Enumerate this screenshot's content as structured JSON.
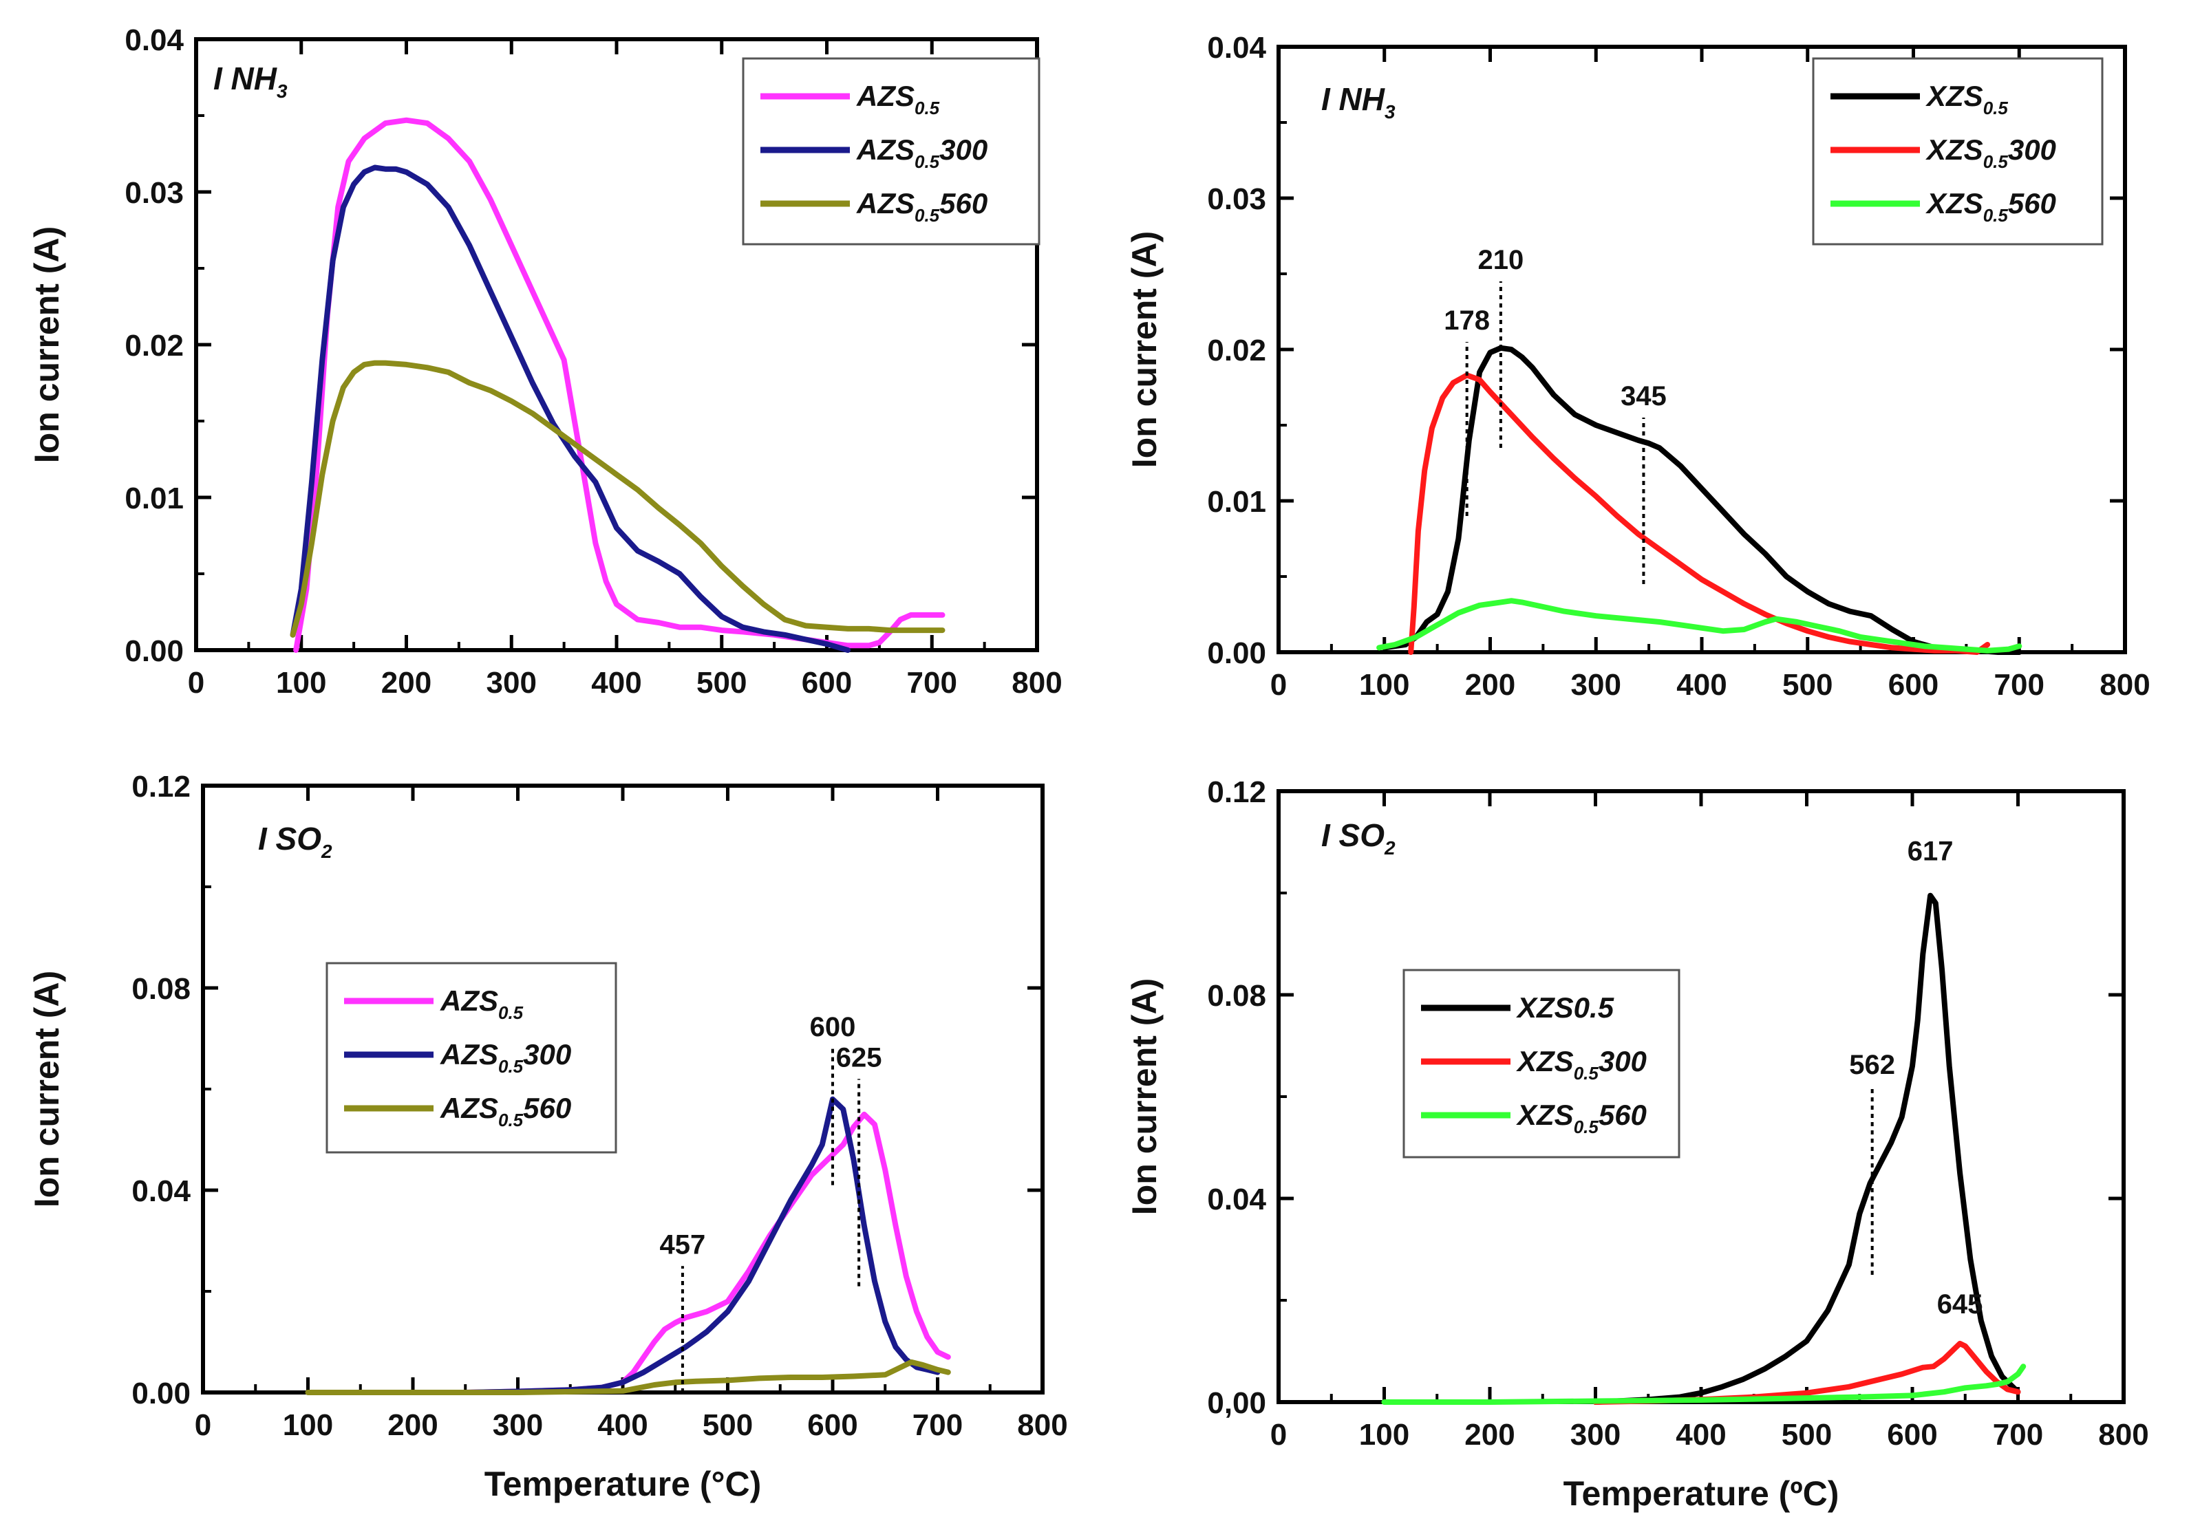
{
  "chart_data": [
    {
      "type": "line",
      "panel_label": {
        "main": "I NH",
        "sub": "3"
      },
      "ylabel": "Ion current (A)",
      "xlabel": "",
      "xlim": [
        0,
        800
      ],
      "ylim": [
        0,
        0.04
      ],
      "xticks": [
        "0",
        "100",
        "200",
        "300",
        "400",
        "500",
        "600",
        "700",
        "800"
      ],
      "yticks": [
        "0.00",
        "0.01",
        "0.02",
        "0.03",
        "0.04"
      ],
      "legend_position": "top-right",
      "series": [
        {
          "name": "AZS",
          "name_sub": "0.5",
          "name_suffix": "",
          "color": "#ff33ff",
          "x": [
            95,
            105,
            115,
            125,
            135,
            145,
            160,
            180,
            200,
            220,
            240,
            260,
            280,
            300,
            320,
            340,
            350,
            360,
            370,
            380,
            390,
            400,
            410,
            420,
            440,
            460,
            480,
            500,
            520,
            550,
            580,
            600,
            620,
            640,
            650,
            660,
            670,
            680,
            690,
            700,
            710
          ],
          "y": [
            0.0,
            0.004,
            0.012,
            0.022,
            0.029,
            0.032,
            0.0335,
            0.0345,
            0.0347,
            0.0345,
            0.0335,
            0.032,
            0.0295,
            0.0265,
            0.0235,
            0.0205,
            0.019,
            0.015,
            0.011,
            0.007,
            0.0045,
            0.003,
            0.0025,
            0.002,
            0.0018,
            0.0015,
            0.0015,
            0.0013,
            0.0012,
            0.001,
            0.0007,
            0.0005,
            0.0003,
            0.0003,
            0.0005,
            0.0012,
            0.002,
            0.0023,
            0.0023,
            0.0023,
            0.0023
          ]
        },
        {
          "name": "AZS",
          "name_sub": "0.5",
          "name_suffix": "300",
          "color": "#1a1a8c",
          "x": [
            92,
            100,
            110,
            120,
            130,
            140,
            150,
            160,
            170,
            180,
            190,
            200,
            220,
            240,
            260,
            280,
            300,
            320,
            340,
            360,
            380,
            400,
            420,
            440,
            460,
            480,
            500,
            520,
            540,
            560,
            580,
            600,
            610,
            620
          ],
          "y": [
            0.001,
            0.004,
            0.011,
            0.019,
            0.0255,
            0.029,
            0.0305,
            0.0313,
            0.0316,
            0.0315,
            0.0315,
            0.0313,
            0.0305,
            0.029,
            0.0265,
            0.0235,
            0.0205,
            0.0175,
            0.0148,
            0.0127,
            0.011,
            0.008,
            0.0065,
            0.0058,
            0.005,
            0.0035,
            0.0022,
            0.0015,
            0.0012,
            0.001,
            0.0007,
            0.0004,
            0.0002,
            0.0
          ]
        },
        {
          "name": "AZS",
          "name_sub": "0.5",
          "name_suffix": "560",
          "color": "#8c8c1a",
          "x": [
            92,
            100,
            110,
            120,
            130,
            140,
            150,
            160,
            170,
            180,
            200,
            220,
            240,
            260,
            280,
            300,
            320,
            340,
            360,
            380,
            400,
            420,
            440,
            460,
            480,
            500,
            520,
            540,
            560,
            580,
            600,
            620,
            640,
            660,
            680,
            700,
            710
          ],
          "y": [
            0.001,
            0.003,
            0.007,
            0.0115,
            0.015,
            0.0172,
            0.0182,
            0.0187,
            0.0188,
            0.0188,
            0.0187,
            0.0185,
            0.0182,
            0.0175,
            0.017,
            0.0163,
            0.0155,
            0.0145,
            0.0135,
            0.0125,
            0.0115,
            0.0105,
            0.0093,
            0.0082,
            0.007,
            0.0055,
            0.0042,
            0.003,
            0.002,
            0.0016,
            0.0015,
            0.0014,
            0.0014,
            0.0013,
            0.0013,
            0.0013,
            0.0013
          ]
        }
      ],
      "annotations": []
    },
    {
      "type": "line",
      "panel_label": {
        "main": "I NH",
        "sub": "3"
      },
      "ylabel": "Ion current (A)",
      "xlabel": "",
      "xlim": [
        0,
        800
      ],
      "ylim": [
        0,
        0.04
      ],
      "xticks": [
        "0",
        "100",
        "200",
        "300",
        "400",
        "500",
        "600",
        "700",
        "800"
      ],
      "yticks": [
        "0.00",
        "0.01",
        "0.02",
        "0.03",
        "0.04"
      ],
      "legend_position": "top-right",
      "series": [
        {
          "name": "XZS",
          "name_sub": "0.5",
          "name_suffix": "",
          "color": "#000000",
          "x": [
            100,
            120,
            130,
            140,
            150,
            160,
            170,
            180,
            190,
            200,
            210,
            220,
            230,
            240,
            260,
            280,
            300,
            320,
            340,
            350,
            360,
            380,
            400,
            420,
            440,
            460,
            480,
            500,
            520,
            540,
            560,
            580,
            600,
            620,
            640,
            660,
            680,
            700
          ],
          "y": [
            0.0003,
            0.0005,
            0.001,
            0.002,
            0.0025,
            0.004,
            0.0075,
            0.014,
            0.0185,
            0.0198,
            0.0201,
            0.02,
            0.0195,
            0.0188,
            0.017,
            0.0157,
            0.015,
            0.0145,
            0.014,
            0.0138,
            0.0135,
            0.0123,
            0.0108,
            0.0093,
            0.0078,
            0.0065,
            0.005,
            0.004,
            0.0032,
            0.0027,
            0.0024,
            0.0015,
            0.0007,
            0.0003,
            0.0002,
            0.0001,
            0.0,
            0.0
          ]
        },
        {
          "name": "XZS",
          "name_sub": "0.5",
          "name_suffix": "300",
          "color": "#ff1a1a",
          "x": [
            125,
            128,
            132,
            138,
            145,
            155,
            165,
            178,
            190,
            200,
            220,
            240,
            260,
            280,
            300,
            320,
            340,
            360,
            380,
            400,
            420,
            440,
            460,
            480,
            500,
            520,
            540,
            560,
            580,
            600,
            620,
            640,
            660,
            670
          ],
          "y": [
            0.0,
            0.003,
            0.008,
            0.012,
            0.0148,
            0.0168,
            0.0178,
            0.0183,
            0.018,
            0.0172,
            0.0157,
            0.0142,
            0.0128,
            0.0115,
            0.0103,
            0.009,
            0.0078,
            0.0068,
            0.0058,
            0.0048,
            0.004,
            0.0032,
            0.0025,
            0.0019,
            0.0014,
            0.001,
            0.0007,
            0.0005,
            0.0003,
            0.0002,
            0.0001,
            0.0001,
            0.0,
            0.0005
          ]
        },
        {
          "name": "XZS",
          "name_sub": "0.5",
          "name_suffix": "560",
          "color": "#33ff33",
          "x": [
            95,
            110,
            130,
            150,
            170,
            190,
            210,
            220,
            230,
            250,
            270,
            300,
            330,
            360,
            390,
            420,
            440,
            460,
            470,
            490,
            510,
            530,
            550,
            570,
            590,
            610,
            630,
            650,
            670,
            690,
            700
          ],
          "y": [
            0.0003,
            0.0005,
            0.001,
            0.0018,
            0.0026,
            0.0031,
            0.0033,
            0.0034,
            0.0033,
            0.003,
            0.0027,
            0.0024,
            0.0022,
            0.002,
            0.0017,
            0.0014,
            0.0015,
            0.002,
            0.0022,
            0.002,
            0.0017,
            0.0014,
            0.001,
            0.0008,
            0.0006,
            0.0004,
            0.0003,
            0.0002,
            0.0001,
            0.0002,
            0.0004
          ]
        }
      ],
      "annotations": [
        {
          "text": "178",
          "x": 178,
          "y_from": 0.009,
          "y_to": 0.0205
        },
        {
          "text": "210",
          "x": 210,
          "y_from": 0.0135,
          "y_to": 0.0245
        },
        {
          "text": "345",
          "x": 345,
          "y_from": 0.0045,
          "y_to": 0.0155
        }
      ]
    },
    {
      "type": "line",
      "panel_label": {
        "main": "I SO",
        "sub": "2"
      },
      "ylabel": "Ion current (A)",
      "xlabel": "Temperature (°C)",
      "xlim": [
        0,
        800
      ],
      "ylim": [
        0,
        0.12
      ],
      "xticks": [
        "0",
        "100",
        "200",
        "300",
        "400",
        "500",
        "600",
        "700",
        "800"
      ],
      "yticks": [
        "0.00",
        "0.04",
        "0.08",
        "0.12"
      ],
      "legend_position": "center-left",
      "series": [
        {
          "name": "AZS",
          "name_sub": "0.5",
          "name_suffix": "",
          "color": "#ff33ff",
          "x": [
            250,
            300,
            350,
            380,
            400,
            410,
            420,
            430,
            440,
            450,
            460,
            480,
            500,
            520,
            540,
            560,
            580,
            600,
            610,
            620,
            630,
            640,
            650,
            660,
            670,
            680,
            690,
            700,
            710
          ],
          "y": [
            0.0,
            0.0002,
            0.0005,
            0.001,
            0.002,
            0.004,
            0.007,
            0.01,
            0.0125,
            0.0138,
            0.0148,
            0.016,
            0.018,
            0.024,
            0.031,
            0.037,
            0.043,
            0.047,
            0.049,
            0.0525,
            0.055,
            0.053,
            0.044,
            0.033,
            0.023,
            0.016,
            0.011,
            0.008,
            0.007
          ]
        },
        {
          "name": "AZS",
          "name_sub": "0.5",
          "name_suffix": "300",
          "color": "#1a1a8c",
          "x": [
            250,
            300,
            350,
            380,
            400,
            420,
            440,
            460,
            480,
            500,
            520,
            540,
            560,
            580,
            590,
            600,
            610,
            620,
            630,
            640,
            650,
            660,
            670,
            680,
            690,
            700
          ],
          "y": [
            0.0,
            0.0002,
            0.0005,
            0.001,
            0.002,
            0.004,
            0.0065,
            0.009,
            0.012,
            0.016,
            0.022,
            0.03,
            0.038,
            0.045,
            0.049,
            0.058,
            0.056,
            0.046,
            0.033,
            0.022,
            0.014,
            0.009,
            0.0065,
            0.005,
            0.0045,
            0.004
          ]
        },
        {
          "name": "AZS",
          "name_sub": "0.5",
          "name_suffix": "560",
          "color": "#8c8c1a",
          "x": [
            100,
            200,
            300,
            400,
            430,
            450,
            470,
            500,
            530,
            560,
            590,
            620,
            650,
            665,
            675,
            685,
            700,
            710
          ],
          "y": [
            0.0,
            0.0,
            0.0,
            0.0003,
            0.0015,
            0.002,
            0.0022,
            0.0024,
            0.0028,
            0.003,
            0.003,
            0.0032,
            0.0035,
            0.005,
            0.006,
            0.0055,
            0.0045,
            0.004
          ]
        }
      ],
      "annotations": [
        {
          "text": "457",
          "x": 457,
          "y_from": 0.0,
          "y_to": 0.025
        },
        {
          "text": "600",
          "x": 600,
          "y_from": 0.041,
          "y_to": 0.068
        },
        {
          "text": "625",
          "x": 625,
          "y_from": 0.021,
          "y_to": 0.062
        }
      ]
    },
    {
      "type": "line",
      "panel_label": {
        "main": "I SO",
        "sub": "2"
      },
      "ylabel": "Ion current (A)",
      "xlabel": "Temperature (ºC)",
      "xlim": [
        0,
        800
      ],
      "ylim": [
        0,
        0.12
      ],
      "xticks": [
        "0",
        "100",
        "200",
        "300",
        "400",
        "500",
        "600",
        "700",
        "800"
      ],
      "yticks": [
        "0,00",
        "0.04",
        "0.08",
        "0.12"
      ],
      "legend_position": "center-left",
      "series": [
        {
          "name": "XZS0.5",
          "name_sub": "",
          "name_suffix": "",
          "color": "#000000",
          "x": [
            300,
            350,
            380,
            400,
            420,
            440,
            460,
            480,
            500,
            520,
            540,
            550,
            560,
            570,
            580,
            590,
            600,
            605,
            610,
            617,
            622,
            628,
            635,
            645,
            655,
            665,
            675,
            685,
            695,
            700
          ],
          "y": [
            0.0,
            0.0005,
            0.001,
            0.0018,
            0.003,
            0.0045,
            0.0065,
            0.009,
            0.012,
            0.018,
            0.027,
            0.037,
            0.043,
            0.047,
            0.051,
            0.056,
            0.066,
            0.075,
            0.088,
            0.0995,
            0.098,
            0.085,
            0.066,
            0.045,
            0.028,
            0.016,
            0.009,
            0.005,
            0.003,
            0.002
          ]
        },
        {
          "name": "XZS",
          "name_sub": "0.5",
          "name_suffix": "300",
          "color": "#ff1a1a",
          "x": [
            300,
            350,
            400,
            450,
            500,
            540,
            570,
            590,
            610,
            620,
            630,
            640,
            645,
            650,
            660,
            670,
            680,
            690,
            700
          ],
          "y": [
            0.0,
            0.0002,
            0.0005,
            0.001,
            0.0018,
            0.003,
            0.0045,
            0.0055,
            0.0068,
            0.007,
            0.0085,
            0.0105,
            0.0115,
            0.011,
            0.0085,
            0.006,
            0.004,
            0.0025,
            0.002
          ]
        },
        {
          "name": "XZS",
          "name_sub": "0.5",
          "name_suffix": "560",
          "color": "#33ff33",
          "x": [
            100,
            200,
            300,
            400,
            450,
            500,
            550,
            600,
            630,
            650,
            670,
            680,
            690,
            700,
            705
          ],
          "y": [
            0.0,
            0.0,
            0.0002,
            0.0004,
            0.0006,
            0.0008,
            0.001,
            0.0013,
            0.002,
            0.0028,
            0.0032,
            0.0035,
            0.004,
            0.0055,
            0.007
          ]
        }
      ],
      "annotations": [
        {
          "text": "562",
          "x": 562,
          "y_from": 0.025,
          "y_to": 0.062
        },
        {
          "text": "617",
          "x": 617,
          "y_from": 0.104,
          "y_to": 0.104,
          "no_line": true
        },
        {
          "text": "645",
          "x": 645,
          "y_from": 0.015,
          "y_to": 0.015,
          "no_line": true
        }
      ]
    }
  ]
}
